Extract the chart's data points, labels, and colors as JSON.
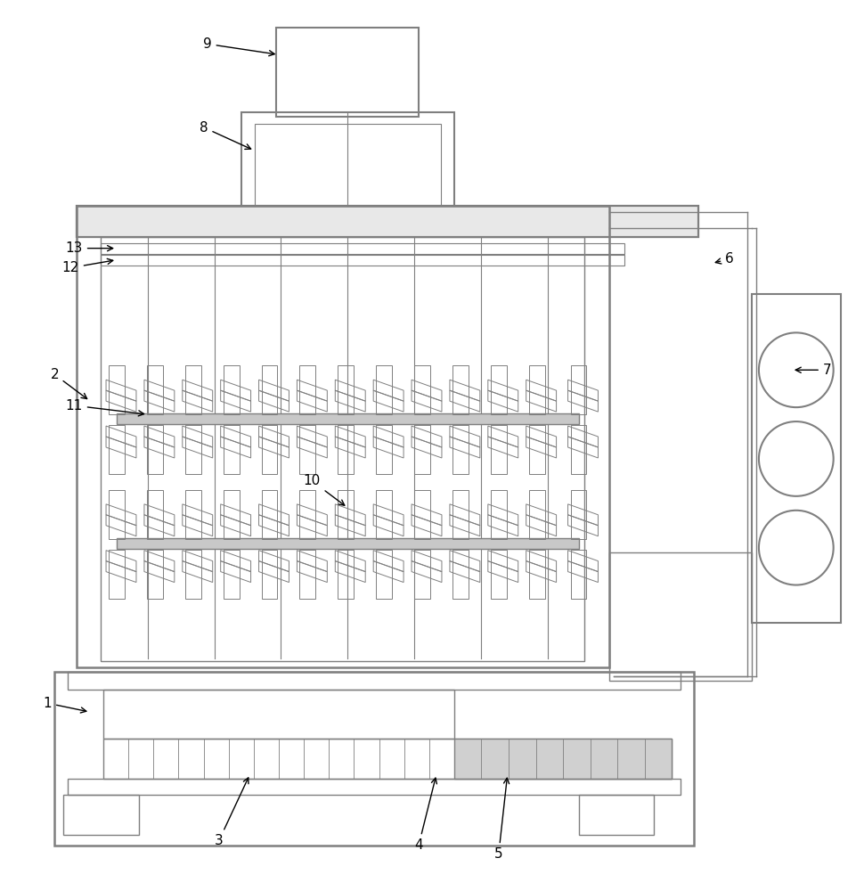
{
  "bg_color": "#ffffff",
  "lc": "#7f7f7f",
  "bk": "#000000",
  "figsize": [
    9.62,
    10.0
  ],
  "dpi": 100
}
